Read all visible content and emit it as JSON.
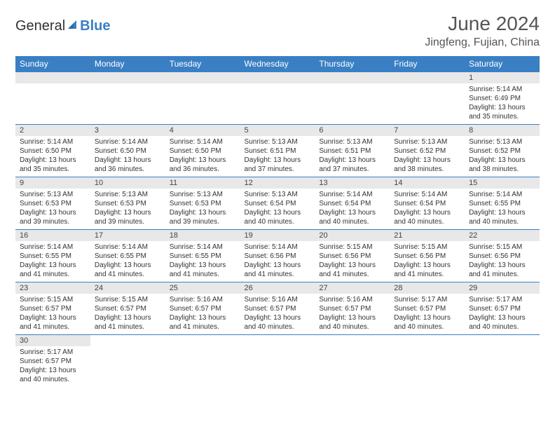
{
  "brand_general": "General",
  "brand_blue": "Blue",
  "title": "June 2024",
  "location": "Jingfeng, Fujian, China",
  "header_bg": "#3a7fc4",
  "daynum_bg": "#e8e8e8",
  "text_color": "#333333",
  "days": [
    "Sunday",
    "Monday",
    "Tuesday",
    "Wednesday",
    "Thursday",
    "Friday",
    "Saturday"
  ],
  "weeks": [
    [
      null,
      null,
      null,
      null,
      null,
      null,
      {
        "n": "1",
        "sr": "Sunrise: 5:14 AM",
        "ss": "Sunset: 6:49 PM",
        "d1": "Daylight: 13 hours",
        "d2": "and 35 minutes."
      }
    ],
    [
      {
        "n": "2",
        "sr": "Sunrise: 5:14 AM",
        "ss": "Sunset: 6:50 PM",
        "d1": "Daylight: 13 hours",
        "d2": "and 35 minutes."
      },
      {
        "n": "3",
        "sr": "Sunrise: 5:14 AM",
        "ss": "Sunset: 6:50 PM",
        "d1": "Daylight: 13 hours",
        "d2": "and 36 minutes."
      },
      {
        "n": "4",
        "sr": "Sunrise: 5:14 AM",
        "ss": "Sunset: 6:50 PM",
        "d1": "Daylight: 13 hours",
        "d2": "and 36 minutes."
      },
      {
        "n": "5",
        "sr": "Sunrise: 5:13 AM",
        "ss": "Sunset: 6:51 PM",
        "d1": "Daylight: 13 hours",
        "d2": "and 37 minutes."
      },
      {
        "n": "6",
        "sr": "Sunrise: 5:13 AM",
        "ss": "Sunset: 6:51 PM",
        "d1": "Daylight: 13 hours",
        "d2": "and 37 minutes."
      },
      {
        "n": "7",
        "sr": "Sunrise: 5:13 AM",
        "ss": "Sunset: 6:52 PM",
        "d1": "Daylight: 13 hours",
        "d2": "and 38 minutes."
      },
      {
        "n": "8",
        "sr": "Sunrise: 5:13 AM",
        "ss": "Sunset: 6:52 PM",
        "d1": "Daylight: 13 hours",
        "d2": "and 38 minutes."
      }
    ],
    [
      {
        "n": "9",
        "sr": "Sunrise: 5:13 AM",
        "ss": "Sunset: 6:53 PM",
        "d1": "Daylight: 13 hours",
        "d2": "and 39 minutes."
      },
      {
        "n": "10",
        "sr": "Sunrise: 5:13 AM",
        "ss": "Sunset: 6:53 PM",
        "d1": "Daylight: 13 hours",
        "d2": "and 39 minutes."
      },
      {
        "n": "11",
        "sr": "Sunrise: 5:13 AM",
        "ss": "Sunset: 6:53 PM",
        "d1": "Daylight: 13 hours",
        "d2": "and 39 minutes."
      },
      {
        "n": "12",
        "sr": "Sunrise: 5:13 AM",
        "ss": "Sunset: 6:54 PM",
        "d1": "Daylight: 13 hours",
        "d2": "and 40 minutes."
      },
      {
        "n": "13",
        "sr": "Sunrise: 5:14 AM",
        "ss": "Sunset: 6:54 PM",
        "d1": "Daylight: 13 hours",
        "d2": "and 40 minutes."
      },
      {
        "n": "14",
        "sr": "Sunrise: 5:14 AM",
        "ss": "Sunset: 6:54 PM",
        "d1": "Daylight: 13 hours",
        "d2": "and 40 minutes."
      },
      {
        "n": "15",
        "sr": "Sunrise: 5:14 AM",
        "ss": "Sunset: 6:55 PM",
        "d1": "Daylight: 13 hours",
        "d2": "and 40 minutes."
      }
    ],
    [
      {
        "n": "16",
        "sr": "Sunrise: 5:14 AM",
        "ss": "Sunset: 6:55 PM",
        "d1": "Daylight: 13 hours",
        "d2": "and 41 minutes."
      },
      {
        "n": "17",
        "sr": "Sunrise: 5:14 AM",
        "ss": "Sunset: 6:55 PM",
        "d1": "Daylight: 13 hours",
        "d2": "and 41 minutes."
      },
      {
        "n": "18",
        "sr": "Sunrise: 5:14 AM",
        "ss": "Sunset: 6:55 PM",
        "d1": "Daylight: 13 hours",
        "d2": "and 41 minutes."
      },
      {
        "n": "19",
        "sr": "Sunrise: 5:14 AM",
        "ss": "Sunset: 6:56 PM",
        "d1": "Daylight: 13 hours",
        "d2": "and 41 minutes."
      },
      {
        "n": "20",
        "sr": "Sunrise: 5:15 AM",
        "ss": "Sunset: 6:56 PM",
        "d1": "Daylight: 13 hours",
        "d2": "and 41 minutes."
      },
      {
        "n": "21",
        "sr": "Sunrise: 5:15 AM",
        "ss": "Sunset: 6:56 PM",
        "d1": "Daylight: 13 hours",
        "d2": "and 41 minutes."
      },
      {
        "n": "22",
        "sr": "Sunrise: 5:15 AM",
        "ss": "Sunset: 6:56 PM",
        "d1": "Daylight: 13 hours",
        "d2": "and 41 minutes."
      }
    ],
    [
      {
        "n": "23",
        "sr": "Sunrise: 5:15 AM",
        "ss": "Sunset: 6:57 PM",
        "d1": "Daylight: 13 hours",
        "d2": "and 41 minutes."
      },
      {
        "n": "24",
        "sr": "Sunrise: 5:15 AM",
        "ss": "Sunset: 6:57 PM",
        "d1": "Daylight: 13 hours",
        "d2": "and 41 minutes."
      },
      {
        "n": "25",
        "sr": "Sunrise: 5:16 AM",
        "ss": "Sunset: 6:57 PM",
        "d1": "Daylight: 13 hours",
        "d2": "and 41 minutes."
      },
      {
        "n": "26",
        "sr": "Sunrise: 5:16 AM",
        "ss": "Sunset: 6:57 PM",
        "d1": "Daylight: 13 hours",
        "d2": "and 40 minutes."
      },
      {
        "n": "27",
        "sr": "Sunrise: 5:16 AM",
        "ss": "Sunset: 6:57 PM",
        "d1": "Daylight: 13 hours",
        "d2": "and 40 minutes."
      },
      {
        "n": "28",
        "sr": "Sunrise: 5:17 AM",
        "ss": "Sunset: 6:57 PM",
        "d1": "Daylight: 13 hours",
        "d2": "and 40 minutes."
      },
      {
        "n": "29",
        "sr": "Sunrise: 5:17 AM",
        "ss": "Sunset: 6:57 PM",
        "d1": "Daylight: 13 hours",
        "d2": "and 40 minutes."
      }
    ],
    [
      {
        "n": "30",
        "sr": "Sunrise: 5:17 AM",
        "ss": "Sunset: 6:57 PM",
        "d1": "Daylight: 13 hours",
        "d2": "and 40 minutes."
      },
      null,
      null,
      null,
      null,
      null,
      null
    ]
  ]
}
